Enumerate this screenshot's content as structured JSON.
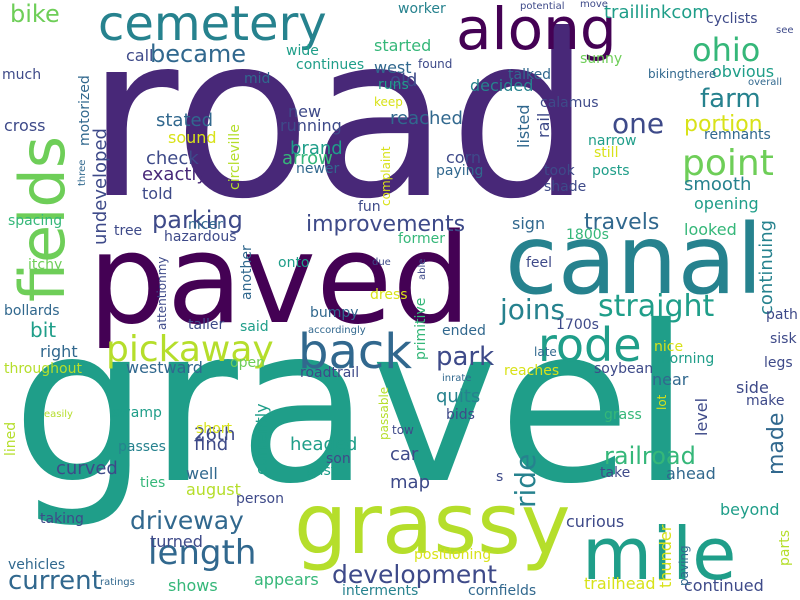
{
  "palette": {
    "d1": "#440154",
    "d2": "#482878",
    "d3": "#3e4a89",
    "m1": "#31688e",
    "m2": "#26828e",
    "m3": "#1f9e89",
    "g1": "#35b779",
    "g2": "#6ece58",
    "y1": "#b5de2b",
    "y2": "#d8e219"
  },
  "words": [
    {
      "text": "road",
      "color": "d2"
    },
    {
      "text": "gravel",
      "color": "m3"
    },
    {
      "text": "paved",
      "color": "d1"
    },
    {
      "text": "canal",
      "color": "m2"
    },
    {
      "text": "fields",
      "color": "g2"
    },
    {
      "text": "grassy",
      "color": "y1"
    },
    {
      "text": "mile",
      "color": "m3"
    },
    {
      "text": "cemetery",
      "color": "m2"
    },
    {
      "text": "along",
      "color": "d1"
    },
    {
      "text": "back",
      "color": "m1"
    },
    {
      "text": "rode",
      "color": "m3"
    },
    {
      "text": "pickaway",
      "color": "y1"
    },
    {
      "text": "point",
      "color": "g2"
    },
    {
      "text": "ohio",
      "color": "g1"
    },
    {
      "text": "length",
      "color": "m1"
    },
    {
      "text": "straight",
      "color": "m3"
    },
    {
      "text": "development",
      "color": "d3"
    },
    {
      "text": "driveway",
      "color": "m1"
    },
    {
      "text": "current",
      "color": "m1"
    },
    {
      "text": "became",
      "color": "m1"
    },
    {
      "text": "farm",
      "color": "m2"
    },
    {
      "text": "railroad",
      "color": "g1"
    },
    {
      "text": "parking",
      "color": "d3"
    },
    {
      "text": "improvements",
      "color": "d3"
    },
    {
      "text": "travels",
      "color": "m1"
    },
    {
      "text": "joins",
      "color": "m2"
    },
    {
      "text": "park",
      "color": "d3"
    },
    {
      "text": "ride",
      "color": "m2"
    },
    {
      "text": "one",
      "color": "d3"
    },
    {
      "text": "bike",
      "color": "g2"
    },
    {
      "text": "made",
      "color": "m1"
    },
    {
      "text": "portion",
      "color": "y2"
    },
    {
      "text": "smooth",
      "color": "m2"
    },
    {
      "text": "continuing",
      "color": "m2"
    },
    {
      "text": "undeveloped",
      "color": "d3"
    },
    {
      "text": "exactly",
      "color": "d2"
    },
    {
      "text": "check",
      "color": "d3"
    },
    {
      "text": "stated",
      "color": "m1"
    },
    {
      "text": "bit",
      "color": "m3"
    },
    {
      "text": "old",
      "color": "d3"
    },
    {
      "text": "west",
      "color": "m1"
    },
    {
      "text": "decided",
      "color": "m2"
    },
    {
      "text": "sound",
      "color": "y2"
    },
    {
      "text": "brand",
      "color": "m3"
    },
    {
      "text": "arrow",
      "color": "g1"
    },
    {
      "text": "reached",
      "color": "m1"
    },
    {
      "text": "corn",
      "color": "d3"
    },
    {
      "text": "told",
      "color": "d3"
    },
    {
      "text": "listed",
      "color": "m1"
    },
    {
      "text": "rail",
      "color": "d3"
    },
    {
      "text": "call",
      "color": "d3"
    },
    {
      "text": "started",
      "color": "g1"
    },
    {
      "text": "wide",
      "color": "m3"
    },
    {
      "text": "cross",
      "color": "d3"
    },
    {
      "text": "circleville",
      "color": "y1"
    },
    {
      "text": "right",
      "color": "m1"
    },
    {
      "text": "westward",
      "color": "m1"
    },
    {
      "text": "quits",
      "color": "m2"
    },
    {
      "text": "find",
      "color": "d3"
    },
    {
      "text": "curved",
      "color": "d3"
    },
    {
      "text": "well",
      "color": "m1"
    },
    {
      "text": "headed",
      "color": "m3"
    },
    {
      "text": "currently",
      "color": "m3"
    },
    {
      "text": "26th",
      "color": "d3"
    },
    {
      "text": "car",
      "color": "d3"
    },
    {
      "text": "map",
      "color": "d3"
    },
    {
      "text": "august",
      "color": "y1"
    },
    {
      "text": "turned",
      "color": "d3"
    },
    {
      "text": "shows",
      "color": "g1"
    },
    {
      "text": "appears",
      "color": "g1"
    },
    {
      "text": "continued",
      "color": "d3"
    },
    {
      "text": "trailhead",
      "color": "y2"
    },
    {
      "text": "curious",
      "color": "d3"
    },
    {
      "text": "beyond",
      "color": "m3"
    },
    {
      "text": "ahead",
      "color": "m1"
    },
    {
      "text": "level",
      "color": "d3"
    },
    {
      "text": "thunder",
      "color": "y2"
    },
    {
      "text": "near",
      "color": "m1"
    },
    {
      "text": "side",
      "color": "d3"
    },
    {
      "text": "throughout",
      "color": "y1"
    },
    {
      "text": "opening",
      "color": "m3"
    },
    {
      "text": "looked",
      "color": "g1"
    },
    {
      "text": "sign",
      "color": "m1"
    },
    {
      "text": "1800s",
      "color": "g1"
    },
    {
      "text": "1700s",
      "color": "d3"
    },
    {
      "text": "traillinkcom",
      "color": "m3"
    },
    {
      "text": "cyclists",
      "color": "d3"
    },
    {
      "text": "obvious",
      "color": "m3"
    },
    {
      "text": "bikingthere",
      "color": "m1"
    },
    {
      "text": "running",
      "color": "d3"
    },
    {
      "text": "newer",
      "color": "m1"
    },
    {
      "text": "new",
      "color": "d3"
    },
    {
      "text": "runs",
      "color": "m3"
    },
    {
      "text": "keep",
      "color": "y2"
    },
    {
      "text": "found",
      "color": "d3"
    },
    {
      "text": "talked",
      "color": "m1"
    },
    {
      "text": "sunny",
      "color": "g2"
    },
    {
      "text": "calamus",
      "color": "d3"
    },
    {
      "text": "narrow",
      "color": "m3"
    },
    {
      "text": "still",
      "color": "y2"
    },
    {
      "text": "remnants",
      "color": "m1"
    },
    {
      "text": "took",
      "color": "d3"
    },
    {
      "text": "shade",
      "color": "d3"
    },
    {
      "text": "paying",
      "color": "m1"
    },
    {
      "text": "posts",
      "color": "m3"
    },
    {
      "text": "complaint",
      "color": "y2"
    },
    {
      "text": "fun",
      "color": "d3"
    },
    {
      "text": "former",
      "color": "g1"
    },
    {
      "text": "feel",
      "color": "d3"
    },
    {
      "text": "late",
      "color": "m1"
    },
    {
      "text": "nice",
      "color": "y2"
    },
    {
      "text": "morning",
      "color": "m3"
    },
    {
      "text": "soybean",
      "color": "d3"
    },
    {
      "text": "reaches",
      "color": "y2"
    },
    {
      "text": "ended",
      "color": "m1"
    },
    {
      "text": "sisk",
      "color": "d3"
    },
    {
      "text": "path",
      "color": "d3"
    },
    {
      "text": "legs",
      "color": "d3"
    },
    {
      "text": "make",
      "color": "d3"
    },
    {
      "text": "grass",
      "color": "g1"
    },
    {
      "text": "lot",
      "color": "y2"
    },
    {
      "text": "take",
      "color": "d3"
    },
    {
      "text": "parts",
      "color": "y1"
    },
    {
      "text": "paving",
      "color": "m1"
    },
    {
      "text": "worker",
      "color": "m2"
    },
    {
      "text": "potential",
      "color": "d3"
    },
    {
      "text": "move",
      "color": "d3"
    },
    {
      "text": "much",
      "color": "d3"
    },
    {
      "text": "motorized",
      "color": "m1"
    },
    {
      "text": "mid",
      "color": "m1"
    },
    {
      "text": "continues",
      "color": "m3"
    },
    {
      "text": "see",
      "color": "d3"
    },
    {
      "text": "overall",
      "color": "m1"
    },
    {
      "text": "three",
      "color": "m1"
    },
    {
      "text": "spacing",
      "color": "g1"
    },
    {
      "text": "itchy",
      "color": "g2"
    },
    {
      "text": "tree",
      "color": "d3"
    },
    {
      "text": "nicer",
      "color": "m1"
    },
    {
      "text": "hazardous",
      "color": "d3"
    },
    {
      "text": "attentionmy",
      "color": "d3"
    },
    {
      "text": "another",
      "color": "m1"
    },
    {
      "text": "onto",
      "color": "m3"
    },
    {
      "text": "due",
      "color": "d3"
    },
    {
      "text": "able",
      "color": "d3"
    },
    {
      "text": "dress",
      "color": "y2"
    },
    {
      "text": "primitive",
      "color": "g1"
    },
    {
      "text": "bumpy",
      "color": "m1"
    },
    {
      "text": "taller",
      "color": "d3"
    },
    {
      "text": "said",
      "color": "m3"
    },
    {
      "text": "accordingly",
      "color": "m1"
    },
    {
      "text": "roadtrail",
      "color": "d3"
    },
    {
      "text": "open",
      "color": "g2"
    },
    {
      "text": "bollards",
      "color": "m1"
    },
    {
      "text": "inrate",
      "color": "m1"
    },
    {
      "text": "lined",
      "color": "y1"
    },
    {
      "text": "easily",
      "color": "y1"
    },
    {
      "text": "swamp",
      "color": "m3"
    },
    {
      "text": "short",
      "color": "y2"
    },
    {
      "text": "passes",
      "color": "m2"
    },
    {
      "text": "ties",
      "color": "g1"
    },
    {
      "text": "vehicles",
      "color": "m1"
    },
    {
      "text": "taking",
      "color": "d3"
    },
    {
      "text": "person",
      "color": "d3"
    },
    {
      "text": "past",
      "color": "m3"
    },
    {
      "text": "son",
      "color": "d3"
    },
    {
      "text": "tow",
      "color": "d3"
    },
    {
      "text": "bids",
      "color": "d3"
    },
    {
      "text": "passable",
      "color": "y1"
    },
    {
      "text": "s",
      "color": "d3"
    },
    {
      "text": "positioning",
      "color": "y2"
    },
    {
      "text": "ratings",
      "color": "m1"
    },
    {
      "text": "interments",
      "color": "m2"
    },
    {
      "text": "cornfields",
      "color": "m1"
    }
  ]
}
